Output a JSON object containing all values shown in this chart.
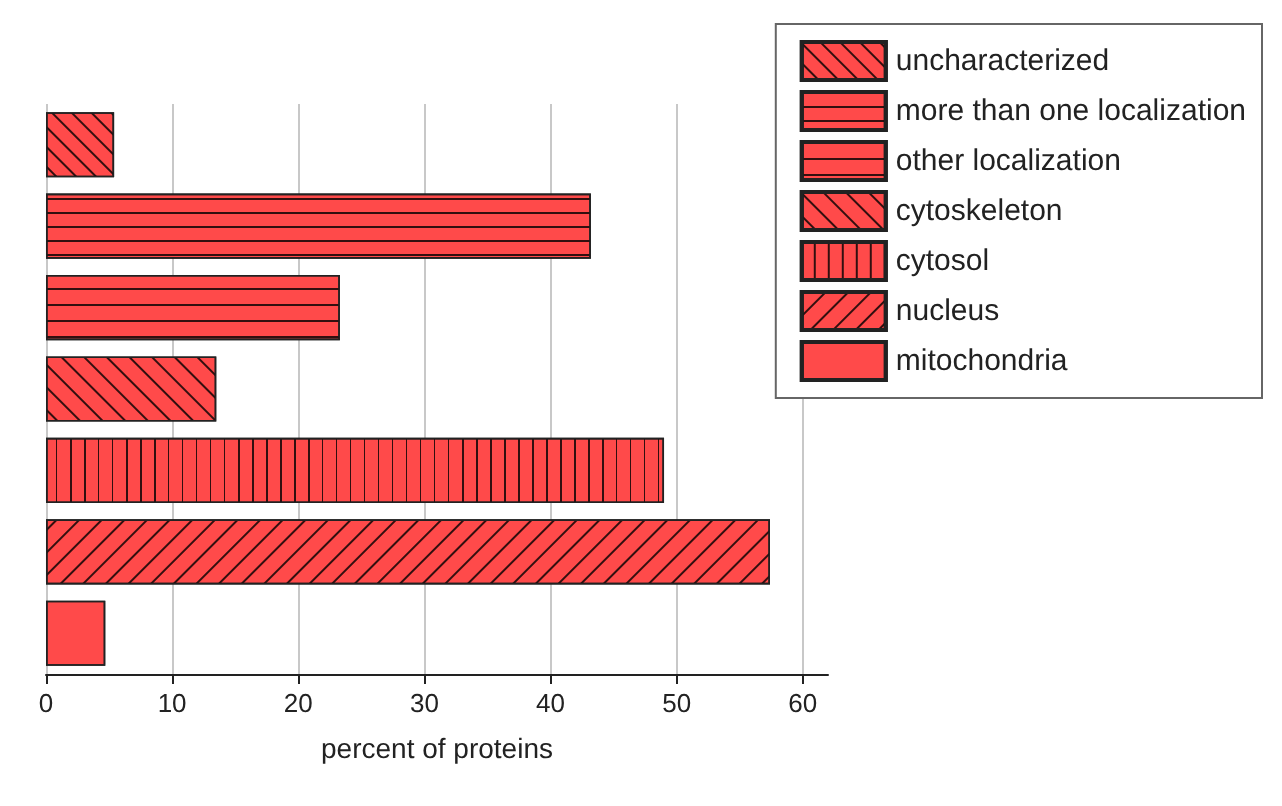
{
  "chart_data": {
    "type": "bar",
    "orientation": "horizontal",
    "xlabel": "percent of proteins",
    "categories": [
      null,
      null,
      null,
      null,
      null,
      null,
      null
    ],
    "series": [
      {
        "name": "uncharacterized",
        "color": "#ff4a4a",
        "values": [
          5.4,
          null,
          null,
          null,
          null,
          null,
          null
        ]
      },
      {
        "name": "more than one localization",
        "color": "#ff4a4a",
        "values": [
          null,
          43.2,
          null,
          null,
          null,
          null,
          null
        ]
      },
      {
        "name": "other localization",
        "color": "#ff4a4a",
        "values": [
          null,
          null,
          23.3,
          null,
          null,
          null,
          null
        ]
      },
      {
        "name": "cytoskeleton",
        "color": "#ff4a4a",
        "values": [
          null,
          null,
          null,
          13.5,
          null,
          null,
          null
        ]
      },
      {
        "name": "cytosol",
        "color": "#ff4a4a",
        "values": [
          null,
          null,
          null,
          null,
          49.0,
          null,
          null
        ]
      },
      {
        "name": "nucleus",
        "color": "#ff4a4a",
        "values": [
          null,
          null,
          null,
          null,
          null,
          57.4,
          null
        ]
      },
      {
        "name": "mitochondria",
        "color": "#ff4a4a",
        "values": [
          null,
          null,
          null,
          null,
          null,
          null,
          4.7
        ]
      }
    ],
    "xlim": [
      0,
      62
    ],
    "xticks": [
      0,
      10,
      20,
      30,
      40,
      50,
      60
    ],
    "grid": "x",
    "legend": "top right",
    "tick_labels": "x"
  }
}
